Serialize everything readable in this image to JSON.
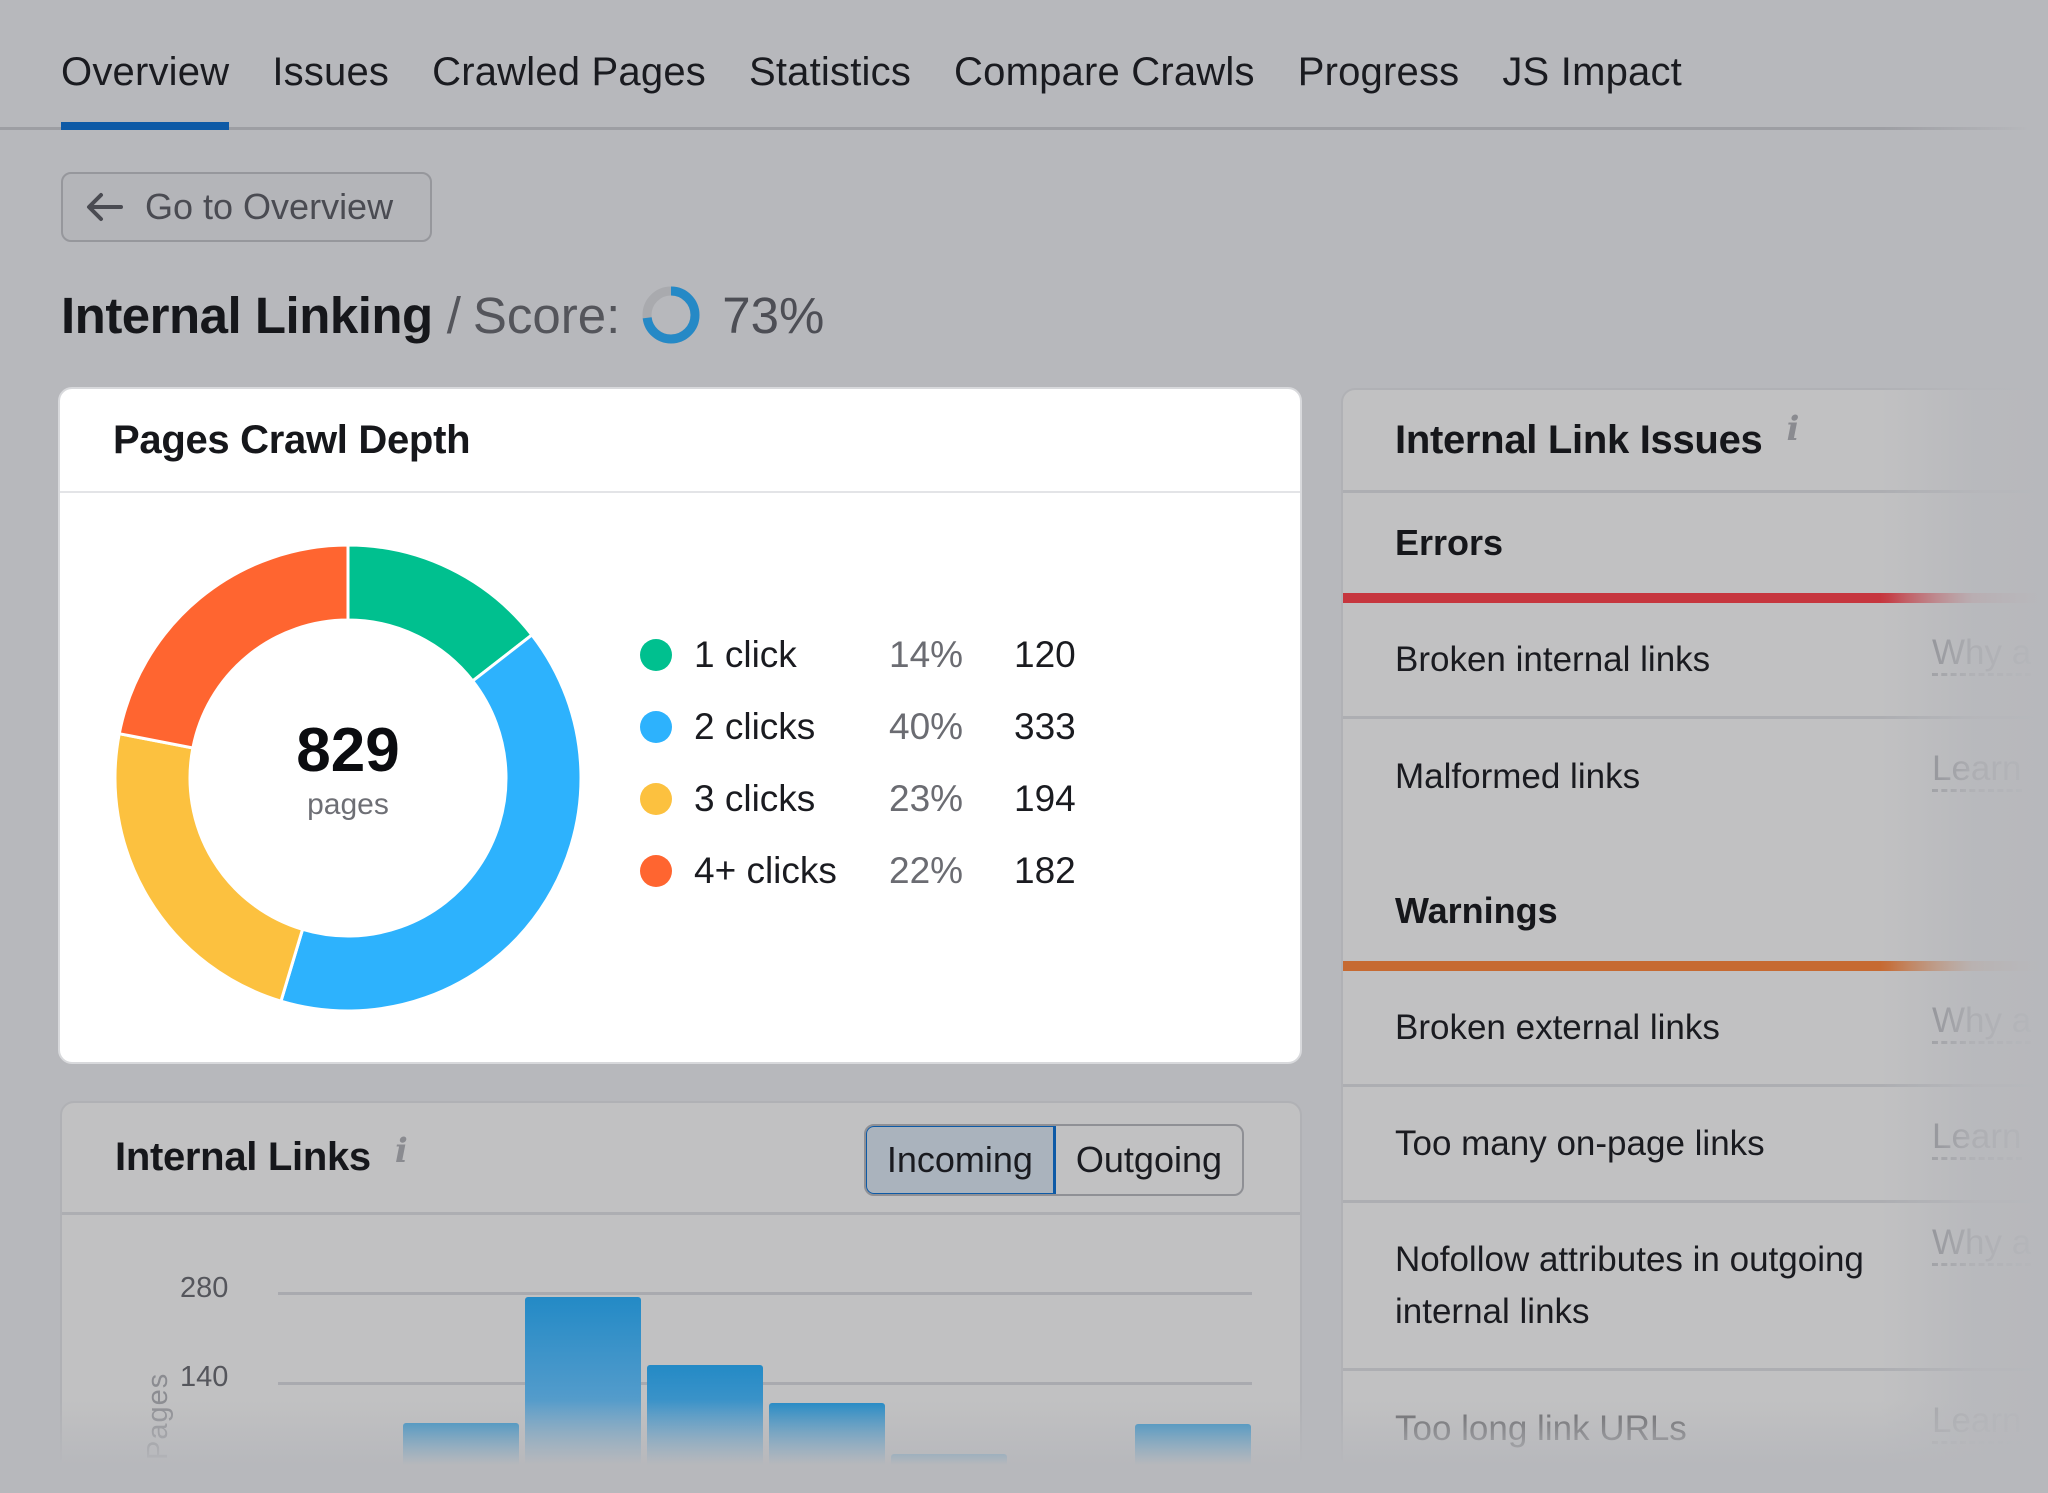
{
  "tabs": [
    {
      "label": "Overview",
      "active": true
    },
    {
      "label": "Issues",
      "active": false
    },
    {
      "label": "Crawled Pages",
      "active": false
    },
    {
      "label": "Statistics",
      "active": false
    },
    {
      "label": "Compare Crawls",
      "active": false
    },
    {
      "label": "Progress",
      "active": false
    },
    {
      "label": "JS Impact",
      "active": false
    }
  ],
  "back_button": {
    "label": "Go to Overview",
    "icon": "arrow-left-icon"
  },
  "title": {
    "main": "Internal Linking",
    "separator": "/",
    "score_label": "Score:",
    "score_value": "73%",
    "score_percent": 73,
    "score_color": "#2589c6"
  },
  "crawl_depth": {
    "title": "Pages Crawl Depth",
    "total": "829",
    "total_unit": "pages",
    "items": [
      {
        "label": "1 click",
        "pct": "14%",
        "count": "120",
        "color": "#00c08f"
      },
      {
        "label": "2 clicks",
        "pct": "40%",
        "count": "333",
        "color": "#2db2fd"
      },
      {
        "label": "3 clicks",
        "pct": "23%",
        "count": "194",
        "color": "#fcc13f"
      },
      {
        "label": "4+ clicks",
        "pct": "22%",
        "count": "182",
        "color": "#ff6530"
      }
    ]
  },
  "internal_links": {
    "title": "Internal Links",
    "info_icon": "i",
    "toggle": [
      {
        "label": "Incoming",
        "active": true
      },
      {
        "label": "Outgoing",
        "active": false
      }
    ],
    "y_axis_label": "Pages",
    "y_ticks": [
      "280",
      "140"
    ]
  },
  "issues": {
    "title": "Internal Link Issues",
    "info_icon": "i",
    "groups": [
      {
        "title": "Errors",
        "color": "#c6363e",
        "rows": [
          {
            "name": "Broken internal links",
            "link": "Why a"
          },
          {
            "name": "Malformed links",
            "link": "Learn"
          }
        ]
      },
      {
        "title": "Warnings",
        "color": "#c66a32",
        "rows": [
          {
            "name": "Broken external links",
            "link": "Why a"
          },
          {
            "name": "Too many on-page links",
            "link": "Learn"
          },
          {
            "name": "Nofollow attributes in outgoing internal links",
            "link": "Why a"
          },
          {
            "name": "Too long link URLs",
            "link": "Learn"
          }
        ]
      }
    ]
  },
  "chart_data": [
    {
      "type": "pie",
      "title": "Pages Crawl Depth",
      "categories": [
        "1 click",
        "2 clicks",
        "3 clicks",
        "4+ clicks"
      ],
      "values": [
        120,
        333,
        194,
        182
      ],
      "percentages": [
        14,
        40,
        23,
        22
      ],
      "colors": [
        "#00c08f",
        "#2db2fd",
        "#fcc13f",
        "#ff6530"
      ],
      "center_label": "829 pages",
      "donut": true
    },
    {
      "type": "bar",
      "title": "Internal Links",
      "series": [
        {
          "name": "Incoming",
          "values": [
            0,
            76,
            273,
            167,
            108,
            28,
            0,
            75
          ]
        }
      ],
      "ylabel": "Pages",
      "yticks": [
        140,
        280
      ],
      "ylim": [
        0,
        280
      ],
      "grid": true
    }
  ]
}
